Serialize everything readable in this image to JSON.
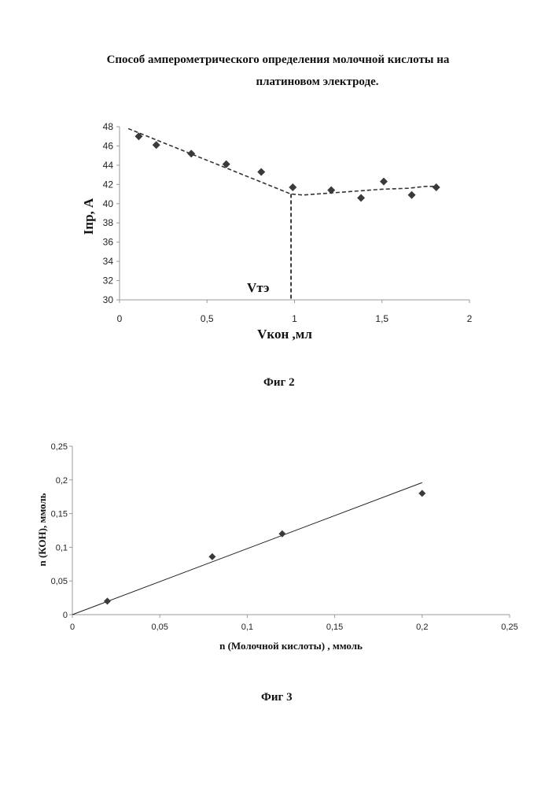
{
  "page": {
    "title_line1": "Способ амперометрического определения молочной кислоты на",
    "title_line2": "платиновом электроде.",
    "fig2_caption": "Фиг 2",
    "fig3_caption": "Фиг 3"
  },
  "chart_data": [
    {
      "type": "scatter",
      "title": "",
      "xlabel": "Vкон ,мл",
      "ylabel": "Iпр, A",
      "xlim": [
        0,
        2
      ],
      "ylim": [
        30,
        48
      ],
      "xticks": [
        "0",
        "0,5",
        "1",
        "1,5",
        "2"
      ],
      "yticks": [
        "30",
        "32",
        "34",
        "36",
        "38",
        "40",
        "42",
        "44",
        "46",
        "48"
      ],
      "series": [
        {
          "marker": "diamond",
          "x": [
            0.11,
            0.21,
            0.41,
            0.61,
            0.81,
            0.99,
            1.21,
            1.38,
            1.51,
            1.67,
            1.81
          ],
          "y": [
            47.0,
            46.1,
            45.2,
            44.1,
            43.3,
            41.7,
            41.4,
            40.6,
            42.3,
            40.9,
            41.7
          ]
        }
      ],
      "trend": {
        "style": "dashed",
        "x": [
          0.05,
          0.98,
          1.05,
          1.2,
          1.35,
          1.5,
          1.65,
          1.75,
          1.82
        ],
        "y": [
          47.8,
          41.0,
          40.9,
          41.1,
          41.3,
          41.5,
          41.6,
          41.8,
          41.8
        ]
      },
      "vline": {
        "x": 0.98,
        "label": "Vтэ",
        "style": "dashed"
      },
      "color": "#3a3a3a"
    },
    {
      "type": "scatter",
      "title": "",
      "xlabel": "n  (Молочной кислоты) , ммоль",
      "ylabel": "n (КОН), ммоль",
      "xlim": [
        0,
        0.25
      ],
      "ylim": [
        0,
        0.25
      ],
      "xticks": [
        "0",
        "0,05",
        "0,1",
        "0,15",
        "0,2",
        "0,25"
      ],
      "yticks": [
        "0",
        "0,05",
        "0,1",
        "0,15",
        "0,2",
        "0,25"
      ],
      "series": [
        {
          "marker": "diamond",
          "x": [
            0.02,
            0.08,
            0.12,
            0.2
          ],
          "y": [
            0.02,
            0.086,
            0.12,
            0.18
          ]
        }
      ],
      "trend": {
        "style": "solid",
        "x": [
          0,
          0.2
        ],
        "y": [
          0,
          0.196
        ]
      },
      "color": "#3a3a3a"
    }
  ]
}
